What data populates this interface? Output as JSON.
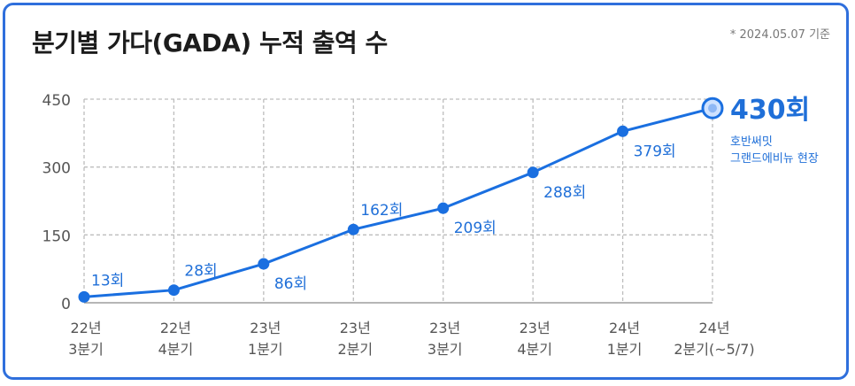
{
  "header": {
    "title": "분기별 가다(GADA) 누적 출역 수",
    "note": "* 2024.05.07 기준"
  },
  "colors": {
    "line": "#1a6fe0",
    "label": "#1f6fd8",
    "grid": "#bdbdbd",
    "axis_text": "#555555",
    "border": "#2f6fdc"
  },
  "chart_data": {
    "type": "line",
    "title": "분기별 가다(GADA) 누적 출역 수",
    "ylim": [
      0,
      450
    ],
    "yticks": [
      "0",
      "150",
      "300",
      "450"
    ],
    "grid": true,
    "categories": [
      [
        "22년",
        "3분기"
      ],
      [
        "22년",
        "4분기"
      ],
      [
        "23년",
        "1분기"
      ],
      [
        "23년",
        "2분기"
      ],
      [
        "23년",
        "3분기"
      ],
      [
        "23년",
        "4분기"
      ],
      [
        "24년",
        "1분기"
      ],
      [
        "24년",
        "2분기(~5/7)"
      ]
    ],
    "values": [
      13,
      28,
      86,
      162,
      209,
      288,
      379,
      430
    ],
    "point_labels": [
      "13회",
      "28회",
      "86회",
      "162회",
      "209회",
      "288회",
      "379회",
      "430회"
    ],
    "final_annotation": [
      "호반써밋",
      "그랜드에비뉴 현장"
    ]
  }
}
